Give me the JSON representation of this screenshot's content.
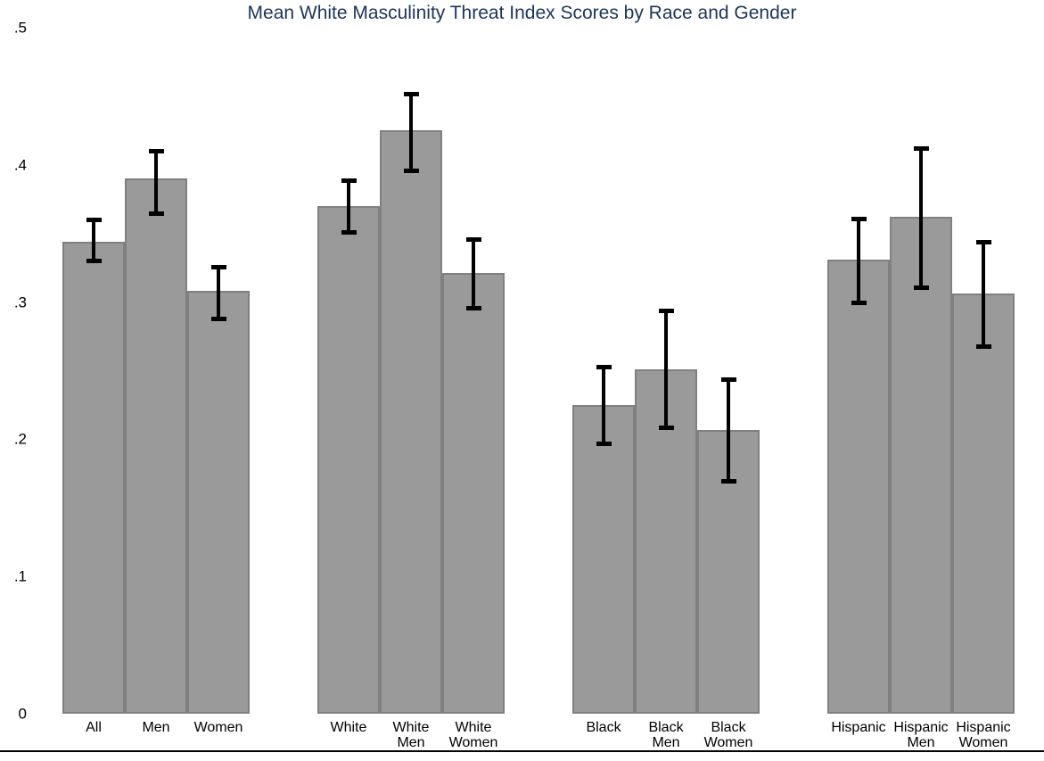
{
  "chart_data": {
    "type": "bar",
    "title": "Mean White Masculinity Threat Index Scores by Race and Gender",
    "xlabel": "",
    "ylabel": "",
    "ylim": [
      0,
      0.5
    ],
    "grid": false,
    "legend": false,
    "error_bars": true,
    "title_color": "#1c3557",
    "bar_color": "#9a9a9a",
    "bar_border_color": "#808080",
    "error_bar_color": "#000000",
    "yticks": [
      {
        "label": ".5",
        "value": 0.5
      },
      {
        "label": ".4",
        "value": 0.4
      },
      {
        "label": ".3",
        "value": 0.3
      },
      {
        "label": ".2",
        "value": 0.2
      },
      {
        "label": ".1",
        "value": 0.1
      },
      {
        "label": "0",
        "value": 0
      }
    ],
    "groups": [
      {
        "bars": [
          {
            "label_lines": [
              "All"
            ],
            "value": 0.344,
            "ci_low": 0.33,
            "ci_high": 0.36
          },
          {
            "label_lines": [
              "Men"
            ],
            "value": 0.39,
            "ci_low": 0.365,
            "ci_high": 0.41
          },
          {
            "label_lines": [
              "Women"
            ],
            "value": 0.308,
            "ci_low": 0.288,
            "ci_high": 0.326
          }
        ]
      },
      {
        "bars": [
          {
            "label_lines": [
              "White"
            ],
            "value": 0.37,
            "ci_low": 0.351,
            "ci_high": 0.389
          },
          {
            "label_lines": [
              "White",
              "Men"
            ],
            "value": 0.425,
            "ci_low": 0.396,
            "ci_high": 0.452
          },
          {
            "label_lines": [
              "White",
              "Women"
            ],
            "value": 0.321,
            "ci_low": 0.296,
            "ci_high": 0.346
          }
        ]
      },
      {
        "bars": [
          {
            "label_lines": [
              "Black"
            ],
            "value": 0.225,
            "ci_low": 0.197,
            "ci_high": 0.253
          },
          {
            "label_lines": [
              "Black",
              "Men"
            ],
            "value": 0.251,
            "ci_low": 0.209,
            "ci_high": 0.294
          },
          {
            "label_lines": [
              "Black",
              "Women"
            ],
            "value": 0.207,
            "ci_low": 0.17,
            "ci_high": 0.244
          }
        ]
      },
      {
        "bars": [
          {
            "label_lines": [
              "Hispanic"
            ],
            "value": 0.331,
            "ci_low": 0.3,
            "ci_high": 0.361
          },
          {
            "label_lines": [
              "Hispanic",
              "Men"
            ],
            "value": 0.362,
            "ci_low": 0.311,
            "ci_high": 0.412
          },
          {
            "label_lines": [
              "Hispanic",
              "Women"
            ],
            "value": 0.306,
            "ci_low": 0.268,
            "ci_high": 0.344
          }
        ]
      }
    ]
  }
}
